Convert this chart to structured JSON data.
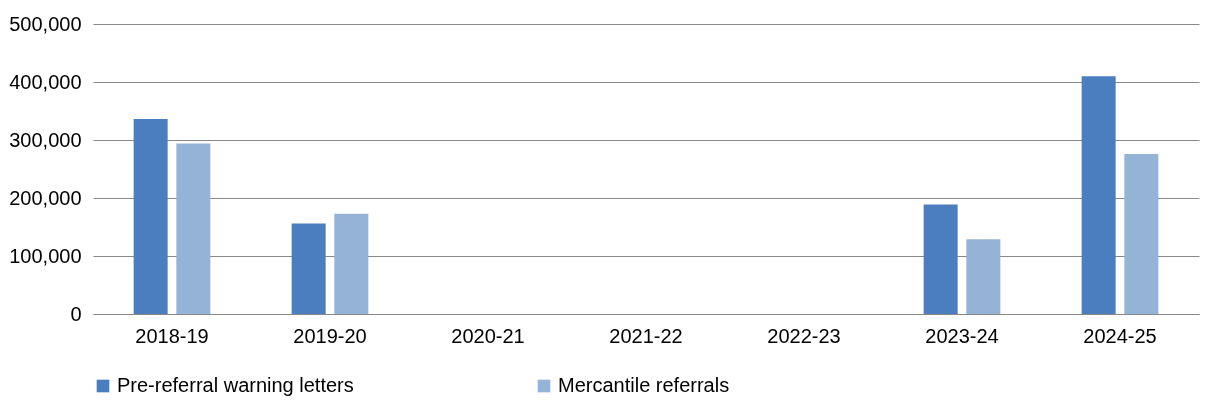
{
  "chart_data": {
    "type": "bar",
    "categories": [
      "2018-19",
      "2019-20",
      "2020-21",
      "2021-22",
      "2022-23",
      "2023-24",
      "2024-25"
    ],
    "series": [
      {
        "name": "Pre-referral warning letters",
        "color": "#4a7ebf",
        "values": [
          336000,
          156000,
          null,
          null,
          null,
          189000,
          410000
        ]
      },
      {
        "name": "Mercantile referrals",
        "color": "#95b3d7",
        "values": [
          294000,
          173000,
          null,
          null,
          null,
          129000,
          276000
        ]
      }
    ],
    "ylim": [
      0,
      500000
    ],
    "yticks": [
      {
        "value": 0,
        "label": "0"
      },
      {
        "value": 100000,
        "label": "100,000"
      },
      {
        "value": 200000,
        "label": "200,000"
      },
      {
        "value": 300000,
        "label": "300,000"
      },
      {
        "value": 400000,
        "label": "400,000"
      },
      {
        "value": 500000,
        "label": "500,000"
      }
    ],
    "grid": "y",
    "legend": "bottom"
  }
}
